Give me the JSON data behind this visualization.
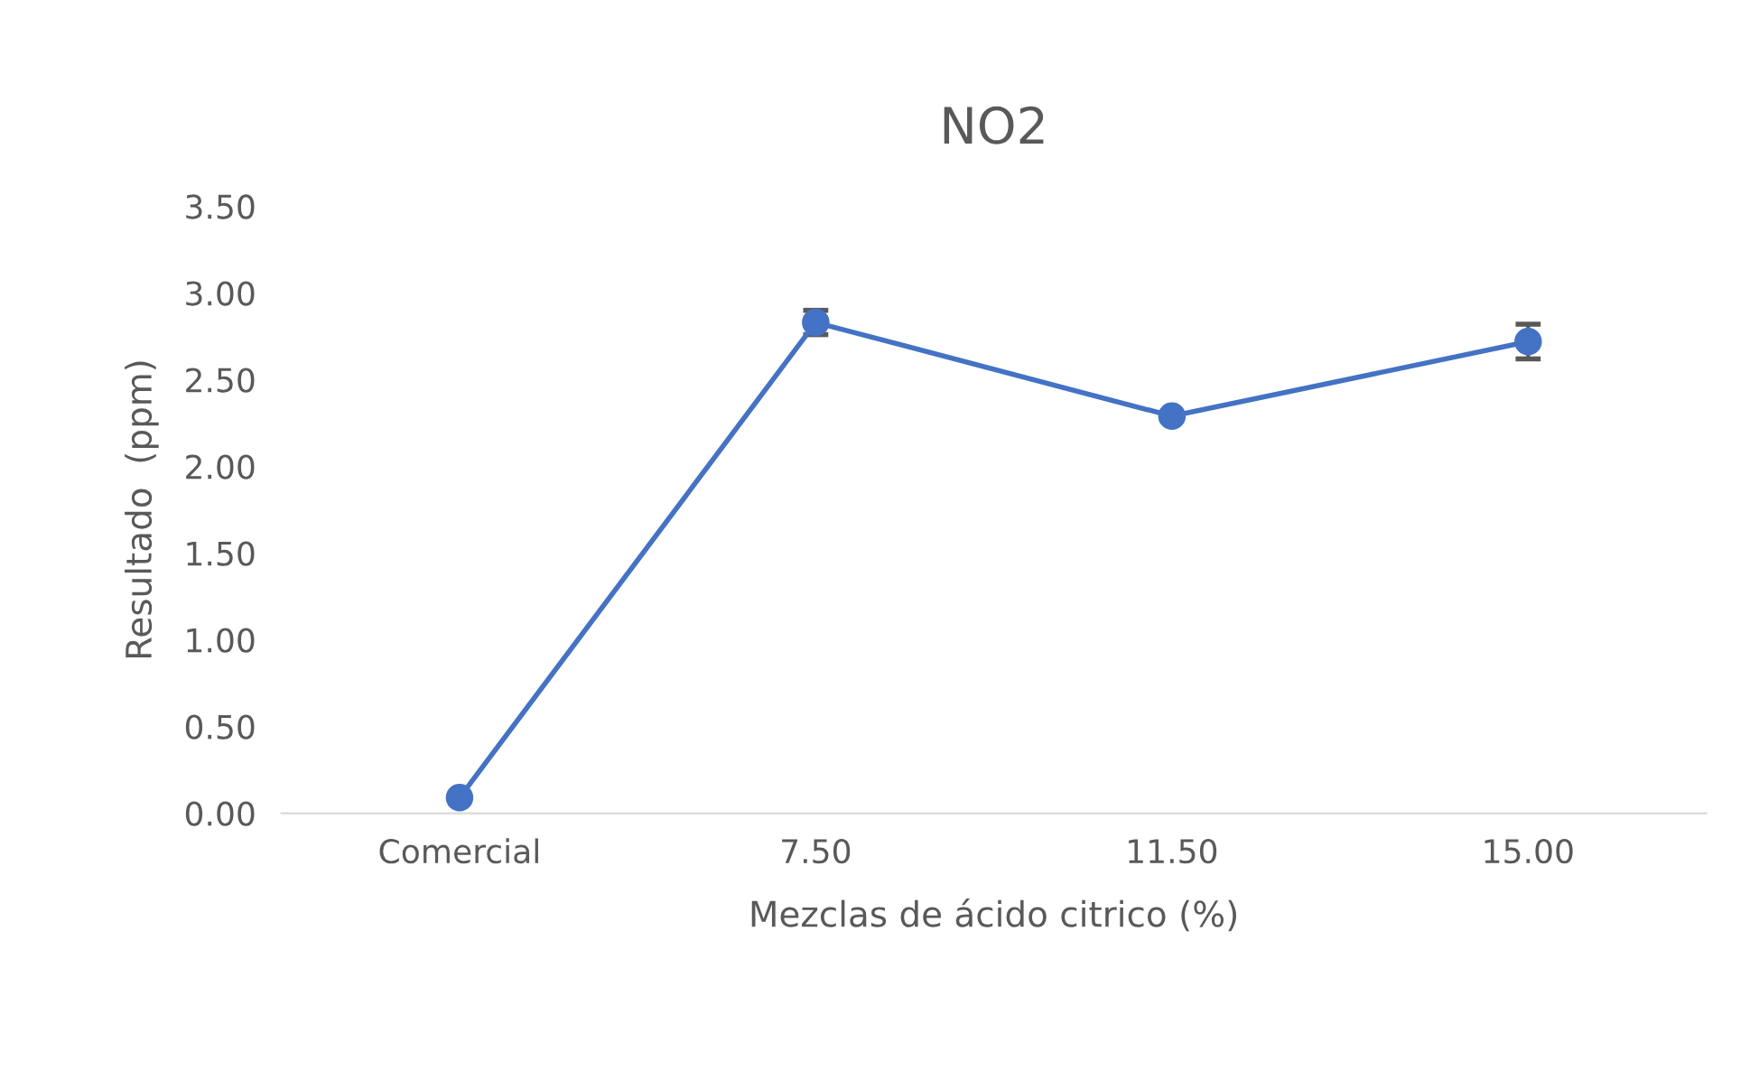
{
  "chart_data": {
    "type": "line",
    "title": "NO2",
    "xlabel": "Mezclas de ácido citrico (%)",
    "ylabel": "Resultado  (ppm)",
    "categories": [
      "Comercial",
      "7.50",
      "11.50",
      "15.00"
    ],
    "series": [
      {
        "color": "#4472c4",
        "values": [
          0.09,
          2.83,
          2.29,
          2.72
        ],
        "errors": [
          null,
          0.07,
          null,
          0.1
        ]
      }
    ],
    "ylim": [
      0,
      3.5
    ],
    "yticks": [
      {
        "value": 0,
        "label": "0.00"
      },
      {
        "value": 0.5,
        "label": "0.50"
      },
      {
        "value": 1,
        "label": "1.00"
      },
      {
        "value": 1.5,
        "label": "1.50"
      },
      {
        "value": 2,
        "label": "2.00"
      },
      {
        "value": 2.5,
        "label": "2.50"
      },
      {
        "value": 3,
        "label": "3.00"
      },
      {
        "value": 3.5,
        "label": "3.50"
      }
    ],
    "grid": false,
    "marker": "circle",
    "line_style": "solid"
  }
}
